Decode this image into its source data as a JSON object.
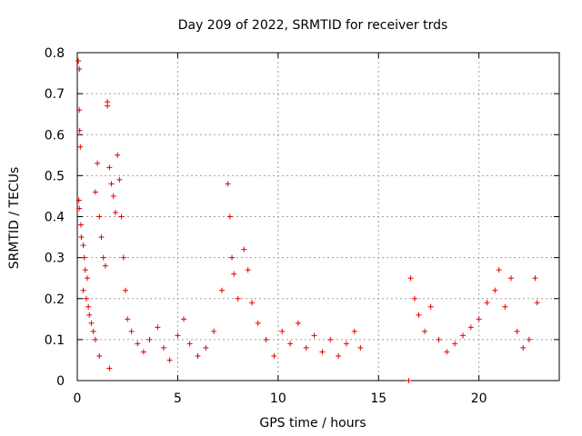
{
  "chart_data": {
    "type": "scatter",
    "title": "Day 209 of 2022, SRMTID for receiver trds",
    "xlabel": "GPS time / hours",
    "ylabel": "SRMTID / TECUs",
    "xlim": [
      0,
      24
    ],
    "ylim": [
      0,
      0.8
    ],
    "x_ticks": [
      "0",
      "5",
      "10",
      "15",
      "20"
    ],
    "y_ticks": [
      "0",
      "0.1",
      "0.2",
      "0.3",
      "0.4",
      "0.5",
      "0.6",
      "0.7",
      "0.8"
    ],
    "grid": true,
    "marker": "plus",
    "color": "#e00000",
    "series": [
      {
        "name": "SRMTID",
        "points": [
          [
            0.05,
            0.78
          ],
          [
            0.1,
            0.76
          ],
          [
            0.1,
            0.66
          ],
          [
            0.12,
            0.61
          ],
          [
            0.15,
            0.57
          ],
          [
            0.08,
            0.44
          ],
          [
            0.1,
            0.42
          ],
          [
            0.18,
            0.38
          ],
          [
            0.2,
            0.35
          ],
          [
            0.3,
            0.33
          ],
          [
            0.35,
            0.3
          ],
          [
            0.4,
            0.27
          ],
          [
            0.5,
            0.25
          ],
          [
            0.3,
            0.22
          ],
          [
            0.45,
            0.2
          ],
          [
            0.55,
            0.18
          ],
          [
            0.6,
            0.16
          ],
          [
            0.7,
            0.14
          ],
          [
            0.8,
            0.12
          ],
          [
            0.9,
            0.1
          ],
          [
            1.0,
            0.53
          ],
          [
            0.9,
            0.46
          ],
          [
            1.1,
            0.4
          ],
          [
            1.2,
            0.35
          ],
          [
            1.3,
            0.3
          ],
          [
            1.4,
            0.28
          ],
          [
            1.5,
            0.68
          ],
          [
            1.5,
            0.67
          ],
          [
            1.6,
            0.52
          ],
          [
            1.7,
            0.48
          ],
          [
            1.8,
            0.45
          ],
          [
            1.9,
            0.41
          ],
          [
            2.0,
            0.55
          ],
          [
            2.1,
            0.49
          ],
          [
            2.2,
            0.4
          ],
          [
            2.3,
            0.3
          ],
          [
            2.4,
            0.22
          ],
          [
            1.6,
            0.03
          ],
          [
            1.1,
            0.06
          ],
          [
            2.5,
            0.15
          ],
          [
            2.7,
            0.12
          ],
          [
            3.0,
            0.09
          ],
          [
            3.3,
            0.07
          ],
          [
            3.6,
            0.1
          ],
          [
            4.0,
            0.13
          ],
          [
            4.3,
            0.08
          ],
          [
            4.6,
            0.05
          ],
          [
            5.0,
            0.11
          ],
          [
            5.3,
            0.15
          ],
          [
            5.6,
            0.09
          ],
          [
            6.0,
            0.06
          ],
          [
            6.4,
            0.08
          ],
          [
            6.8,
            0.12
          ],
          [
            7.2,
            0.22
          ],
          [
            7.5,
            0.48
          ],
          [
            7.6,
            0.4
          ],
          [
            7.7,
            0.3
          ],
          [
            7.8,
            0.26
          ],
          [
            8.0,
            0.2
          ],
          [
            8.3,
            0.32
          ],
          [
            8.5,
            0.27
          ],
          [
            8.7,
            0.19
          ],
          [
            9.0,
            0.14
          ],
          [
            9.4,
            0.1
          ],
          [
            9.8,
            0.06
          ],
          [
            10.2,
            0.12
          ],
          [
            10.6,
            0.09
          ],
          [
            11.0,
            0.14
          ],
          [
            11.4,
            0.08
          ],
          [
            11.8,
            0.11
          ],
          [
            12.2,
            0.07
          ],
          [
            12.6,
            0.1
          ],
          [
            13.0,
            0.06
          ],
          [
            13.4,
            0.09
          ],
          [
            13.8,
            0.12
          ],
          [
            14.1,
            0.08
          ],
          [
            16.5,
            0.0
          ],
          [
            16.6,
            0.25
          ],
          [
            16.8,
            0.2
          ],
          [
            17.0,
            0.16
          ],
          [
            17.3,
            0.12
          ],
          [
            17.6,
            0.18
          ],
          [
            18.0,
            0.1
          ],
          [
            18.4,
            0.07
          ],
          [
            18.8,
            0.09
          ],
          [
            19.2,
            0.11
          ],
          [
            19.6,
            0.13
          ],
          [
            20.0,
            0.15
          ],
          [
            20.4,
            0.19
          ],
          [
            20.8,
            0.22
          ],
          [
            21.0,
            0.27
          ],
          [
            21.3,
            0.18
          ],
          [
            21.6,
            0.25
          ],
          [
            21.9,
            0.12
          ],
          [
            22.2,
            0.08
          ],
          [
            22.5,
            0.1
          ],
          [
            22.8,
            0.25
          ],
          [
            22.9,
            0.19
          ]
        ]
      }
    ]
  }
}
